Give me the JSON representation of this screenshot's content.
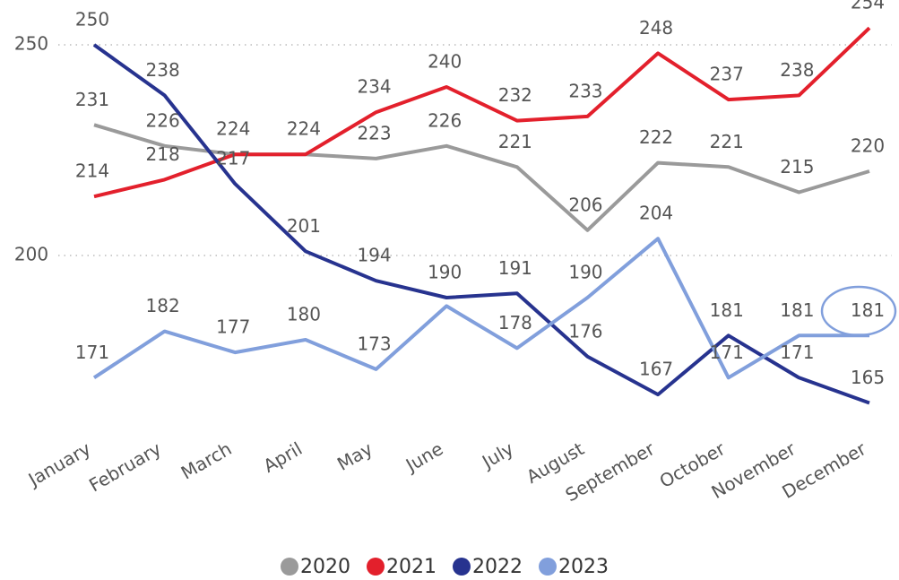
{
  "chart_data": {
    "type": "line",
    "categories": [
      "January",
      "February",
      "March",
      "April",
      "May",
      "June",
      "July",
      "August",
      "September",
      "October",
      "November",
      "December"
    ],
    "series": [
      {
        "name": "2020",
        "color": "#9a9a9a",
        "values": [
          231,
          226,
          224,
          224,
          223,
          226,
          221,
          206,
          222,
          221,
          215,
          220
        ],
        "value_labels": [
          "231",
          "226",
          null,
          null,
          "223",
          "226",
          "221",
          "206",
          "222",
          "221",
          "215",
          "220"
        ]
      },
      {
        "name": "2021",
        "color": "#e3202c",
        "values": [
          214,
          218,
          224,
          224,
          234,
          240,
          232,
          233,
          248,
          237,
          238,
          254
        ],
        "value_labels": [
          "214",
          "218",
          "224",
          "224",
          "234",
          "240",
          "232",
          "233",
          "248",
          "237",
          "238",
          "254"
        ]
      },
      {
        "name": "2022",
        "color": "#27338f",
        "values": [
          250,
          238,
          217,
          201,
          194,
          190,
          191,
          176,
          167,
          181,
          171,
          165
        ],
        "value_labels": [
          "250",
          "238",
          "217",
          "201",
          "194",
          "190",
          "191",
          "176",
          "167",
          "181",
          "171",
          "165"
        ]
      },
      {
        "name": "2023",
        "color": "#819fdc",
        "values": [
          171,
          182,
          177,
          180,
          173,
          188,
          178,
          190,
          204,
          171,
          181,
          181
        ],
        "value_labels": [
          "171",
          "182",
          "177",
          "180",
          "173",
          null,
          "178",
          "190",
          "204",
          "171",
          "181",
          "181"
        ]
      }
    ],
    "ylim": [
      160,
      256
    ],
    "yticks": [
      200,
      250
    ],
    "grid": true,
    "legend": "bottom"
  }
}
